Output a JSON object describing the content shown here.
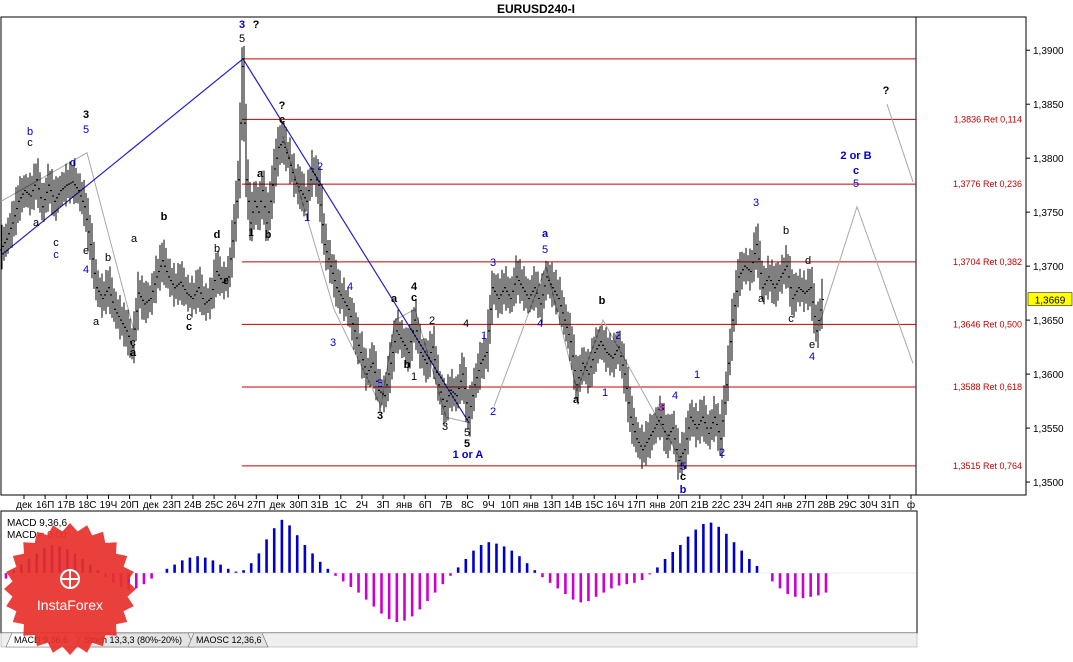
{
  "window_title": "EURUSD240-I",
  "price_axis": {
    "labels": [
      "1,3900",
      "1,3850",
      "1,3800",
      "1,3750",
      "1,3700",
      "1,3650",
      "1,3600",
      "1,3550",
      "1,3500"
    ],
    "current": "1,3669"
  },
  "time_axis": [
    "дек",
    "16П",
    "17В",
    "18С",
    "19Ч",
    "20П",
    "дек",
    "23П",
    "24В",
    "25С",
    "26Ч",
    "27П",
    "дек",
    "30П",
    "31В",
    "1С",
    "2Ч",
    "3П",
    "янв",
    "6П",
    "7В",
    "8С",
    "9Ч",
    "10П",
    "янв",
    "13П",
    "14В",
    "15С",
    "16Ч",
    "17П",
    "янв",
    "20П",
    "21В",
    "22С",
    "23Ч",
    "24П",
    "янв",
    "27П",
    "28В",
    "29С",
    "30Ч",
    "31П",
    "ф"
  ],
  "levels": [
    {
      "label": "",
      "price": 1.3892
    },
    {
      "label": "1,3836 Ret 0,114",
      "price": 1.3836
    },
    {
      "label": "1,3776 Ret 0,236",
      "price": 1.3776
    },
    {
      "label": "1,3704 Ret 0,382",
      "price": 1.3704
    },
    {
      "label": "1,3646 Ret 0,500",
      "price": 1.3646
    },
    {
      "label": "1,3588 Ret 0,618",
      "price": 1.3588
    },
    {
      "label": "1,3515 Ret 0,764",
      "price": 1.3515
    }
  ],
  "wave_labels": [
    {
      "t": "3",
      "x": 242,
      "y": 28,
      "c": "#0000cc",
      "b": true
    },
    {
      "t": "?",
      "x": 256,
      "y": 28,
      "c": "#000000",
      "b": true
    },
    {
      "t": "5",
      "x": 242,
      "y": 42,
      "c": "#000000",
      "b": false
    },
    {
      "t": "3",
      "x": 86,
      "y": 118,
      "c": "#000000",
      "b": true
    },
    {
      "t": "5",
      "x": 86,
      "y": 133,
      "c": "#0000cc",
      "b": false
    },
    {
      "t": "b",
      "x": 30,
      "y": 135,
      "c": "#0000cc",
      "b": false
    },
    {
      "t": "c",
      "x": 30,
      "y": 146,
      "c": "#000000",
      "b": false
    },
    {
      "t": "d",
      "x": 73,
      "y": 166,
      "c": "#0000cc",
      "b": false
    },
    {
      "t": "a",
      "x": 36,
      "y": 226,
      "c": "#000000",
      "b": false
    },
    {
      "t": "c",
      "x": 56,
      "y": 246,
      "c": "#000000",
      "b": false
    },
    {
      "t": "c",
      "x": 56,
      "y": 258,
      "c": "#0000cc",
      "b": false
    },
    {
      "t": "e",
      "x": 86,
      "y": 254,
      "c": "#000000",
      "b": false
    },
    {
      "t": "4",
      "x": 86,
      "y": 273,
      "c": "#0000cc",
      "b": false
    },
    {
      "t": "a",
      "x": 96,
      "y": 325,
      "c": "#000000",
      "b": false
    },
    {
      "t": "c",
      "x": 133,
      "y": 346,
      "c": "#000000",
      "b": false
    },
    {
      "t": "a",
      "x": 133,
      "y": 356,
      "c": "#000000",
      "b": true
    },
    {
      "t": "b",
      "x": 164,
      "y": 220,
      "c": "#000000",
      "b": true
    },
    {
      "t": "a",
      "x": 134,
      "y": 242,
      "c": "#000000",
      "b": false
    },
    {
      "t": "b",
      "x": 108,
      "y": 261,
      "c": "#000000",
      "b": false
    },
    {
      "t": "c",
      "x": 189,
      "y": 320,
      "c": "#000000",
      "b": false
    },
    {
      "t": "c",
      "x": 189,
      "y": 330,
      "c": "#000000",
      "b": true
    },
    {
      "t": "d",
      "x": 217,
      "y": 238,
      "c": "#000000",
      "b": true
    },
    {
      "t": "b",
      "x": 217,
      "y": 252,
      "c": "#000000",
      "b": false
    },
    {
      "t": "e",
      "x": 226,
      "y": 284,
      "c": "#000000",
      "b": true
    },
    {
      "t": "?",
      "x": 282,
      "y": 109,
      "c": "#000000",
      "b": true
    },
    {
      "t": "c",
      "x": 282,
      "y": 123,
      "c": "#000000",
      "b": true
    },
    {
      "t": "a",
      "x": 260,
      "y": 177,
      "c": "#000000",
      "b": true
    },
    {
      "t": "b",
      "x": 268,
      "y": 238,
      "c": "#000000",
      "b": true
    },
    {
      "t": "1",
      "x": 251,
      "y": 236,
      "c": "#000000",
      "b": false
    },
    {
      "t": "2",
      "x": 320,
      "y": 170,
      "c": "#0000cc",
      "b": false
    },
    {
      "t": "1",
      "x": 307,
      "y": 221,
      "c": "#0000cc",
      "b": false
    },
    {
      "t": "4",
      "x": 350,
      "y": 290,
      "c": "#0000cc",
      "b": false
    },
    {
      "t": "3",
      "x": 333,
      "y": 346,
      "c": "#0000cc",
      "b": false
    },
    {
      "t": "5",
      "x": 380,
      "y": 387,
      "c": "#0000cc",
      "b": false
    },
    {
      "t": "3",
      "x": 380,
      "y": 419,
      "c": "#000000",
      "b": true
    },
    {
      "t": "a",
      "x": 394,
      "y": 302,
      "c": "#000000",
      "b": true
    },
    {
      "t": "4",
      "x": 414,
      "y": 290,
      "c": "#000000",
      "b": true
    },
    {
      "t": "c",
      "x": 414,
      "y": 301,
      "c": "#000000",
      "b": true
    },
    {
      "t": "2",
      "x": 432,
      "y": 324,
      "c": "#000000",
      "b": false
    },
    {
      "t": "b",
      "x": 407,
      "y": 368,
      "c": "#000000",
      "b": true
    },
    {
      "t": "1",
      "x": 414,
      "y": 380,
      "c": "#000000",
      "b": false
    },
    {
      "t": "4",
      "x": 466,
      "y": 327,
      "c": "#000000",
      "b": false
    },
    {
      "t": "3",
      "x": 445,
      "y": 430,
      "c": "#000000",
      "b": false
    },
    {
      "t": "5",
      "x": 467,
      "y": 436,
      "c": "#000000",
      "b": false
    },
    {
      "t": "5",
      "x": 467,
      "y": 447,
      "c": "#000000",
      "b": true
    },
    {
      "t": "1 or A",
      "x": 468,
      "y": 458,
      "c": "#0000cc",
      "b": true
    },
    {
      "t": "3",
      "x": 493,
      "y": 266,
      "c": "#0000cc",
      "b": false
    },
    {
      "t": "1",
      "x": 484,
      "y": 339,
      "c": "#0000cc",
      "b": false
    },
    {
      "t": "2",
      "x": 493,
      "y": 415,
      "c": "#0000cc",
      "b": false
    },
    {
      "t": "a",
      "x": 545,
      "y": 237,
      "c": "#0000cc",
      "b": true
    },
    {
      "t": "5",
      "x": 545,
      "y": 253,
      "c": "#0000cc",
      "b": false
    },
    {
      "t": "4",
      "x": 540,
      "y": 327,
      "c": "#0000cc",
      "b": false
    },
    {
      "t": "a",
      "x": 576,
      "y": 403,
      "c": "#000000",
      "b": true
    },
    {
      "t": "b",
      "x": 602,
      "y": 304,
      "c": "#000000",
      "b": true
    },
    {
      "t": "2",
      "x": 618,
      "y": 339,
      "c": "#0000cc",
      "b": false
    },
    {
      "t": "1",
      "x": 605,
      "y": 396,
      "c": "#0000cc",
      "b": false
    },
    {
      "t": "4",
      "x": 675,
      "y": 399,
      "c": "#0000cc",
      "b": false
    },
    {
      "t": "1",
      "x": 697,
      "y": 378,
      "c": "#0000cc",
      "b": false
    },
    {
      "t": "3",
      "x": 661,
      "y": 411,
      "c": "#a000a0",
      "b": false
    },
    {
      "t": "5",
      "x": 683,
      "y": 470,
      "c": "#0000cc",
      "b": false
    },
    {
      "t": "c",
      "x": 683,
      "y": 480,
      "c": "#000000",
      "b": true
    },
    {
      "t": "b",
      "x": 683,
      "y": 493,
      "c": "#0000cc",
      "b": true
    },
    {
      "t": "2",
      "x": 722,
      "y": 456,
      "c": "#0000cc",
      "b": false
    },
    {
      "t": "3",
      "x": 756,
      "y": 206,
      "c": "#0000cc",
      "b": false
    },
    {
      "t": "b",
      "x": 786,
      "y": 234,
      "c": "#000000",
      "b": false
    },
    {
      "t": "d",
      "x": 808,
      "y": 264,
      "c": "#000000",
      "b": false
    },
    {
      "t": "a",
      "x": 761,
      "y": 302,
      "c": "#000000",
      "b": false
    },
    {
      "t": "c",
      "x": 791,
      "y": 322,
      "c": "#000000",
      "b": false
    },
    {
      "t": "e",
      "x": 812,
      "y": 348,
      "c": "#000000",
      "b": false
    },
    {
      "t": "4",
      "x": 812,
      "y": 360,
      "c": "#0000cc",
      "b": false
    },
    {
      "t": "2 or B",
      "x": 856,
      "y": 159,
      "c": "#0000cc",
      "b": true
    },
    {
      "t": "c",
      "x": 856,
      "y": 174,
      "c": "#0000cc",
      "b": true
    },
    {
      "t": "5",
      "x": 856,
      "y": 187,
      "c": "#0000cc",
      "b": false
    },
    {
      "t": "?",
      "x": 886,
      "y": 94,
      "c": "#000000",
      "b": true
    }
  ],
  "indicators": {
    "macd_label": "MACD 9,36,6",
    "macd_name": "MACD",
    "macd_value": "= 0,00",
    "tabs": [
      "MACD 9,36,6",
      "Stoch 13,3,3 (80%-20%)",
      "MAOSC 12,36,6"
    ]
  },
  "brand": {
    "name": "InstaForex",
    "color": "#e8302a"
  },
  "colors": {
    "level": "#c00000",
    "wave_blue": "#0000cc",
    "macd_pos": "#0000cc",
    "macd_neg": "#cc00cc",
    "current_bg": "#ffff00"
  },
  "chart_data": {
    "type": "candlestick",
    "title": "EURUSD240-I",
    "timeframe": "H4",
    "ylim": [
      1.3488,
      1.3928
    ],
    "x_ticks": [
      "дек",
      "16П",
      "17В",
      "18С",
      "19Ч",
      "20П",
      "дек",
      "23П",
      "24В",
      "25С",
      "26Ч",
      "27П",
      "дек",
      "30П",
      "31В",
      "1С",
      "2Ч",
      "3П",
      "янв",
      "6П",
      "7В",
      "8С",
      "9Ч",
      "10П",
      "янв",
      "13П",
      "14В",
      "15С",
      "16Ч",
      "17П",
      "янв",
      "20П",
      "21В",
      "22С",
      "23Ч",
      "24П",
      "янв",
      "27П",
      "28В",
      "29С",
      "30Ч",
      "31П",
      "ф"
    ],
    "current_price": 1.3669,
    "path_close": [
      [
        0,
        1.3715
      ],
      [
        6,
        1.3725
      ],
      [
        12,
        1.374
      ],
      [
        18,
        1.376
      ],
      [
        24,
        1.377
      ],
      [
        30,
        1.3765
      ],
      [
        36,
        1.378
      ],
      [
        42,
        1.3755
      ],
      [
        48,
        1.3775
      ],
      [
        54,
        1.376
      ],
      [
        60,
        1.377
      ],
      [
        66,
        1.3775
      ],
      [
        72,
        1.3778
      ],
      [
        78,
        1.377
      ],
      [
        84,
        1.3755
      ],
      [
        90,
        1.372
      ],
      [
        96,
        1.368
      ],
      [
        102,
        1.367
      ],
      [
        108,
        1.368
      ],
      [
        114,
        1.366
      ],
      [
        120,
        1.365
      ],
      [
        126,
        1.364
      ],
      [
        132,
        1.3625
      ],
      [
        138,
        1.3675
      ],
      [
        144,
        1.3665
      ],
      [
        150,
        1.367
      ],
      [
        156,
        1.369
      ],
      [
        162,
        1.3705
      ],
      [
        168,
        1.369
      ],
      [
        174,
        1.368
      ],
      [
        180,
        1.3685
      ],
      [
        186,
        1.3675
      ],
      [
        192,
        1.367
      ],
      [
        198,
        1.368
      ],
      [
        204,
        1.3665
      ],
      [
        210,
        1.367
      ],
      [
        216,
        1.3695
      ],
      [
        222,
        1.3685
      ],
      [
        228,
        1.369
      ],
      [
        234,
        1.374
      ],
      [
        238,
        1.378
      ],
      [
        242,
        1.3885
      ],
      [
        246,
        1.378
      ],
      [
        250,
        1.374
      ],
      [
        254,
        1.376
      ],
      [
        258,
        1.375
      ],
      [
        262,
        1.377
      ],
      [
        266,
        1.374
      ],
      [
        270,
        1.376
      ],
      [
        274,
        1.379
      ],
      [
        278,
        1.381
      ],
      [
        282,
        1.3815
      ],
      [
        288,
        1.38
      ],
      [
        294,
        1.378
      ],
      [
        300,
        1.377
      ],
      [
        306,
        1.376
      ],
      [
        312,
        1.379
      ],
      [
        318,
        1.3775
      ],
      [
        324,
        1.372
      ],
      [
        330,
        1.37
      ],
      [
        336,
        1.368
      ],
      [
        342,
        1.367
      ],
      [
        348,
        1.366
      ],
      [
        354,
        1.364
      ],
      [
        360,
        1.362
      ],
      [
        366,
        1.36
      ],
      [
        372,
        1.361
      ],
      [
        378,
        1.3585
      ],
      [
        384,
        1.358
      ],
      [
        390,
        1.361
      ],
      [
        396,
        1.364
      ],
      [
        402,
        1.363
      ],
      [
        408,
        1.362
      ],
      [
        414,
        1.365
      ],
      [
        420,
        1.362
      ],
      [
        426,
        1.361
      ],
      [
        432,
        1.3625
      ],
      [
        438,
        1.359
      ],
      [
        444,
        1.357
      ],
      [
        450,
        1.3585
      ],
      [
        456,
        1.358
      ],
      [
        462,
        1.36
      ],
      [
        468,
        1.356
      ],
      [
        474,
        1.359
      ],
      [
        480,
        1.361
      ],
      [
        486,
        1.362
      ],
      [
        492,
        1.368
      ],
      [
        498,
        1.367
      ],
      [
        504,
        1.368
      ],
      [
        510,
        1.367
      ],
      [
        516,
        1.369
      ],
      [
        522,
        1.368
      ],
      [
        528,
        1.367
      ],
      [
        534,
        1.368
      ],
      [
        540,
        1.3665
      ],
      [
        546,
        1.369
      ],
      [
        552,
        1.368
      ],
      [
        558,
        1.367
      ],
      [
        564,
        1.365
      ],
      [
        570,
        1.363
      ],
      [
        576,
        1.359
      ],
      [
        582,
        1.361
      ],
      [
        588,
        1.36
      ],
      [
        594,
        1.362
      ],
      [
        600,
        1.363
      ],
      [
        606,
        1.362
      ],
      [
        612,
        1.3615
      ],
      [
        618,
        1.3625
      ],
      [
        624,
        1.36
      ],
      [
        630,
        1.356
      ],
      [
        636,
        1.354
      ],
      [
        642,
        1.353
      ],
      [
        648,
        1.354
      ],
      [
        654,
        1.355
      ],
      [
        660,
        1.356
      ],
      [
        666,
        1.354
      ],
      [
        672,
        1.355
      ],
      [
        678,
        1.352
      ],
      [
        684,
        1.353
      ],
      [
        690,
        1.356
      ],
      [
        696,
        1.355
      ],
      [
        702,
        1.356
      ],
      [
        708,
        1.3545
      ],
      [
        714,
        1.356
      ],
      [
        720,
        1.354
      ],
      [
        726,
        1.359
      ],
      [
        732,
        1.365
      ],
      [
        738,
        1.369
      ],
      [
        744,
        1.37
      ],
      [
        750,
        1.3695
      ],
      [
        756,
        1.372
      ],
      [
        762,
        1.368
      ],
      [
        768,
        1.369
      ],
      [
        774,
        1.368
      ],
      [
        780,
        1.369
      ],
      [
        786,
        1.37
      ],
      [
        792,
        1.367
      ],
      [
        798,
        1.368
      ],
      [
        804,
        1.3675
      ],
      [
        810,
        1.368
      ],
      [
        816,
        1.364
      ],
      [
        822,
        1.3669
      ]
    ],
    "wave_lines_blue": [
      [
        [
          0,
          1.371
        ],
        [
          242,
          1.3892
        ],
        [
          468,
          1.3555
        ]
      ]
    ],
    "wave_lines_gray": [
      [
        [
          0,
          1.376
        ],
        [
          86,
          1.3805
        ],
        [
          133,
          1.364
        ]
      ],
      [
        [
          282,
          1.382
        ],
        [
          333,
          1.366
        ],
        [
          380,
          1.357
        ],
        [
          394,
          1.365
        ],
        [
          414,
          1.366
        ],
        [
          445,
          1.356
        ],
        [
          468,
          1.3555
        ]
      ],
      [
        [
          493,
          1.357
        ],
        [
          545,
          1.37
        ],
        [
          576,
          1.3585
        ],
        [
          602,
          1.365
        ],
        [
          683,
          1.3515
        ]
      ],
      [
        [
          818,
          1.3645
        ],
        [
          856,
          1.3755
        ],
        [
          912,
          1.361
        ]
      ],
      [
        [
          886,
          1.385
        ],
        [
          912,
          1.3778
        ]
      ]
    ],
    "macd": {
      "name": "MACD 9,36,6",
      "value": "0,00",
      "histogram": [
        -0.2,
        0.1,
        0.3,
        0.5,
        0.7,
        0.9,
        1.0,
        0.95,
        0.85,
        0.7,
        0.5,
        0.3,
        0.1,
        -0.15,
        -0.35,
        -0.5,
        -0.6,
        -0.55,
        -0.4,
        -0.2,
        0.0,
        0.15,
        0.3,
        0.45,
        0.55,
        0.6,
        0.55,
        0.45,
        0.3,
        0.15,
        0.05,
        0.1,
        0.35,
        0.7,
        1.2,
        1.6,
        1.9,
        1.7,
        1.35,
        1.0,
        0.7,
        0.4,
        0.15,
        -0.1,
        -0.3,
        -0.5,
        -0.7,
        -0.95,
        -1.2,
        -1.45,
        -1.65,
        -1.75,
        -1.7,
        -1.55,
        -1.3,
        -1.0,
        -0.7,
        -0.4,
        -0.1,
        0.2,
        0.5,
        0.8,
        1.0,
        1.1,
        1.05,
        0.95,
        0.8,
        0.6,
        0.35,
        0.1,
        -0.15,
        -0.35,
        -0.55,
        -0.75,
        -0.95,
        -1.05,
        -1.0,
        -0.85,
        -0.7,
        -0.55,
        -0.45,
        -0.4,
        -0.35,
        -0.25,
        -0.05,
        0.2,
        0.5,
        0.75,
        1.0,
        1.3,
        1.55,
        1.75,
        1.8,
        1.65,
        1.4,
        1.1,
        0.8,
        0.5,
        0.25,
        0.0,
        -0.3,
        -0.55,
        -0.75,
        -0.85,
        -0.9,
        -0.85,
        -0.8,
        -0.7
      ]
    }
  }
}
